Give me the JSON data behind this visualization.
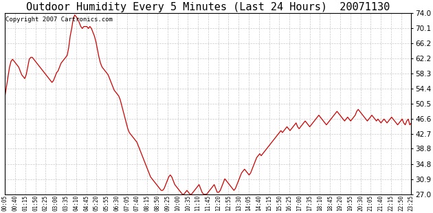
{
  "title": "Outdoor Humidity Every 5 Minutes (Last 24 Hours)  20071130",
  "copyright": "Copyright 2007 Cartronics.com",
  "line_color": "#cc0000",
  "background_color": "#ffffff",
  "grid_color": "#c8c8c8",
  "ylim": [
    27.0,
    74.0
  ],
  "yticks": [
    27.0,
    30.9,
    34.8,
    38.8,
    42.7,
    46.6,
    50.5,
    54.4,
    58.3,
    62.2,
    66.2,
    70.1,
    74.0
  ],
  "title_fontsize": 11,
  "copyright_fontsize": 6.5,
  "xtick_fontsize": 5.5,
  "ytick_fontsize": 7.5,
  "x_labels": [
    "00:05",
    "00:40",
    "01:15",
    "01:50",
    "02:25",
    "03:00",
    "03:35",
    "04:10",
    "04:45",
    "05:20",
    "05:55",
    "06:30",
    "07:05",
    "07:40",
    "08:15",
    "08:50",
    "09:25",
    "10:00",
    "10:35",
    "11:10",
    "11:45",
    "12:20",
    "12:55",
    "13:30",
    "14:05",
    "14:40",
    "15:15",
    "15:50",
    "16:25",
    "17:00",
    "17:35",
    "18:10",
    "18:45",
    "19:20",
    "19:55",
    "20:30",
    "21:05",
    "21:40",
    "22:15",
    "22:50",
    "23:25"
  ],
  "humidity_values": [
    52.5,
    55.0,
    57.5,
    60.0,
    61.5,
    62.0,
    61.5,
    61.0,
    60.5,
    60.0,
    59.0,
    58.0,
    57.5,
    57.0,
    58.0,
    60.0,
    62.0,
    62.5,
    62.5,
    62.0,
    61.5,
    61.0,
    60.5,
    60.0,
    59.5,
    59.0,
    58.5,
    58.0,
    57.5,
    57.0,
    56.5,
    56.0,
    56.5,
    57.5,
    58.5,
    59.0,
    60.0,
    61.0,
    61.5,
    62.0,
    62.5,
    63.0,
    65.0,
    68.0,
    70.0,
    72.5,
    73.5,
    73.0,
    72.5,
    71.5,
    70.5,
    70.0,
    70.5,
    70.5,
    70.5,
    70.0,
    70.5,
    70.0,
    69.0,
    68.0,
    66.5,
    64.5,
    62.5,
    61.0,
    60.0,
    59.5,
    59.0,
    58.5,
    58.0,
    57.0,
    56.0,
    55.0,
    54.0,
    53.5,
    53.0,
    52.5,
    51.5,
    50.0,
    48.5,
    47.0,
    45.5,
    44.0,
    43.0,
    42.5,
    42.0,
    41.5,
    41.0,
    40.5,
    39.5,
    38.5,
    37.5,
    36.5,
    35.5,
    34.5,
    33.5,
    32.5,
    31.5,
    31.0,
    30.5,
    30.0,
    29.5,
    29.0,
    28.5,
    28.0,
    28.0,
    28.5,
    29.5,
    30.5,
    31.5,
    32.0,
    31.5,
    30.5,
    29.5,
    29.0,
    28.5,
    28.0,
    27.5,
    27.0,
    27.0,
    27.5,
    28.0,
    27.5,
    27.0,
    27.0,
    27.5,
    28.0,
    28.5,
    29.0,
    29.5,
    28.5,
    27.5,
    27.0,
    27.0,
    27.0,
    27.5,
    28.0,
    28.5,
    29.0,
    29.5,
    28.5,
    27.5,
    27.5,
    28.0,
    29.0,
    30.0,
    31.0,
    30.5,
    30.0,
    29.5,
    29.0,
    28.5,
    28.0,
    28.5,
    29.5,
    30.5,
    31.5,
    32.5,
    33.0,
    33.5,
    33.0,
    32.5,
    32.0,
    32.5,
    33.5,
    34.5,
    35.5,
    36.5,
    37.0,
    37.5,
    37.0,
    37.5,
    38.0,
    38.5,
    39.0,
    39.5,
    40.0,
    40.5,
    41.0,
    41.5,
    42.0,
    42.5,
    43.0,
    43.5,
    43.0,
    43.5,
    44.0,
    44.5,
    44.0,
    43.5,
    44.0,
    44.5,
    45.0,
    45.5,
    44.5,
    44.0,
    44.5,
    45.0,
    45.5,
    46.0,
    45.5,
    45.0,
    44.5,
    45.0,
    45.5,
    46.0,
    46.5,
    47.0,
    47.5,
    47.0,
    46.5,
    46.0,
    45.5,
    45.0,
    45.5,
    46.0,
    46.5,
    47.0,
    47.5,
    48.0,
    48.5,
    48.0,
    47.5,
    47.0,
    46.5,
    46.0,
    46.5,
    47.0,
    46.5,
    46.0,
    46.5,
    47.0,
    47.5,
    48.5,
    49.0,
    48.5,
    48.0,
    47.5,
    47.0,
    46.5,
    46.0,
    46.5,
    47.0,
    47.5,
    47.0,
    46.5,
    46.0,
    46.5,
    46.0,
    45.5,
    46.0,
    46.5,
    46.0,
    45.5,
    46.0,
    46.5,
    47.0,
    46.5,
    46.0,
    45.5,
    45.0,
    45.5,
    46.0,
    46.5,
    45.5,
    45.0,
    46.0,
    46.5,
    45.0,
    45.5
  ]
}
